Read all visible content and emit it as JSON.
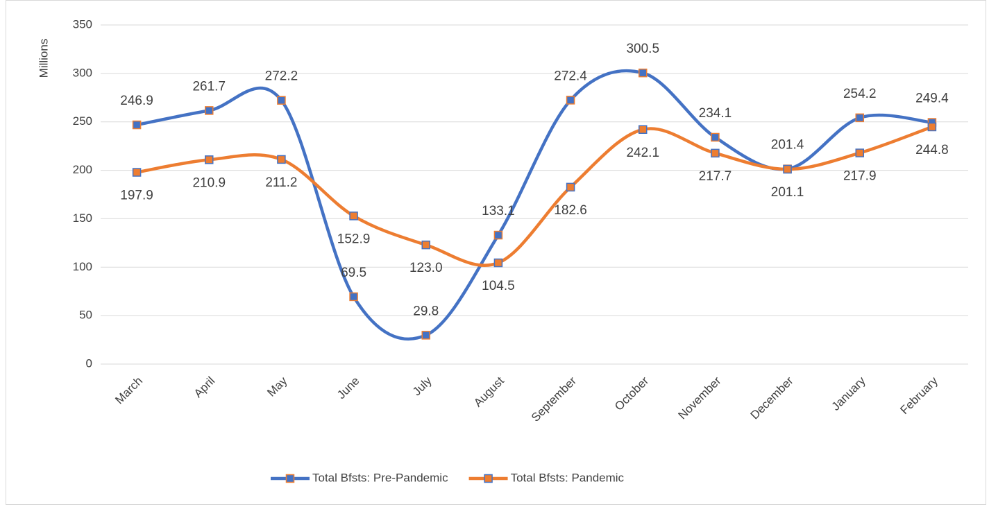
{
  "chart_data": {
    "type": "line",
    "y_label": "Millions",
    "categories": [
      "March",
      "April",
      "May",
      "June",
      "July",
      "August",
      "September",
      "October",
      "November",
      "December",
      "January",
      "February"
    ],
    "series": [
      {
        "name": "Total Bfsts: Pre-Pandemic",
        "color": "#4472c4",
        "marker_edge": "#ed7d31",
        "values": [
          246.9,
          261.7,
          272.2,
          69.5,
          29.8,
          133.1,
          272.4,
          300.5,
          234.1,
          201.4,
          254.2,
          249.4
        ],
        "value_labels": [
          "246.9",
          "261.7",
          "272.2",
          "69.5",
          "29.8",
          "133.1",
          "272.4",
          "300.5",
          "234.1",
          "201.4",
          "254.2",
          "249.4"
        ]
      },
      {
        "name": "Total Bfsts: Pandemic",
        "color": "#ed7d31",
        "marker_edge": "#4472c4",
        "values": [
          197.9,
          210.9,
          211.2,
          152.9,
          123.0,
          104.5,
          182.6,
          242.1,
          217.7,
          201.1,
          217.9,
          244.8
        ],
        "value_labels": [
          "197.9",
          "210.9",
          "211.2",
          "152.9",
          "123.0",
          "104.5",
          "182.6",
          "242.1",
          "217.7",
          "201.1",
          "217.9",
          "244.8"
        ]
      }
    ],
    "ylim": [
      0,
      350
    ],
    "yticks": [
      0,
      50,
      100,
      150,
      200,
      250,
      300,
      350
    ],
    "grid": true,
    "smooth": true,
    "legend": "bottom"
  }
}
